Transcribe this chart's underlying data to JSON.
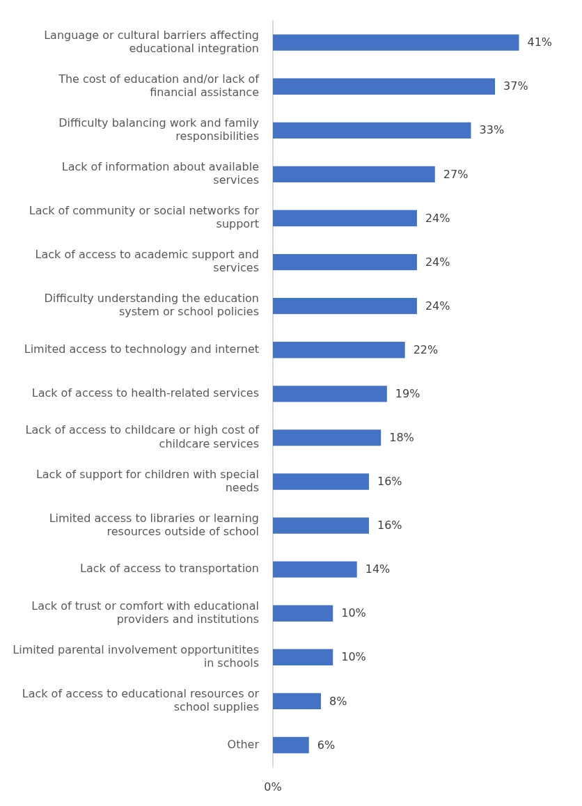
{
  "chart_data": {
    "type": "bar",
    "orientation": "horizontal",
    "categories": [
      "Language or cultural barriers affecting educational integration",
      "The cost of education and/or lack of financial assistance",
      "Difficulty balancing work and family responsibilities",
      "Lack of information about available services",
      "Lack of community or social networks for support",
      "Lack of access to academic support and services",
      "Difficulty understanding the education system or school policies",
      "Limited access to technology and internet",
      "Lack of access to health-related services",
      "Lack of access to childcare or high cost of childcare services",
      "Lack of support for children with special needs",
      "Limited access to libraries or learning resources outside of school",
      "Lack of access to transportation",
      "Lack of trust or comfort with educational providers and institutions",
      "Limited parental involvement opportunitites in schools",
      "Lack of access to educational resources or school supplies",
      "Other"
    ],
    "values": [
      41,
      37,
      33,
      27,
      24,
      24,
      24,
      22,
      19,
      18,
      16,
      16,
      14,
      10,
      10,
      8,
      6
    ],
    "value_labels": [
      "41%",
      "37%",
      "33%",
      "27%",
      "24%",
      "24%",
      "24%",
      "22%",
      "19%",
      "18%",
      "16%",
      "16%",
      "14%",
      "10%",
      "10%",
      "8%",
      "6%"
    ],
    "color": "#4472c4",
    "annotations": [
      "0%"
    ],
    "grid": false,
    "legend": false
  }
}
